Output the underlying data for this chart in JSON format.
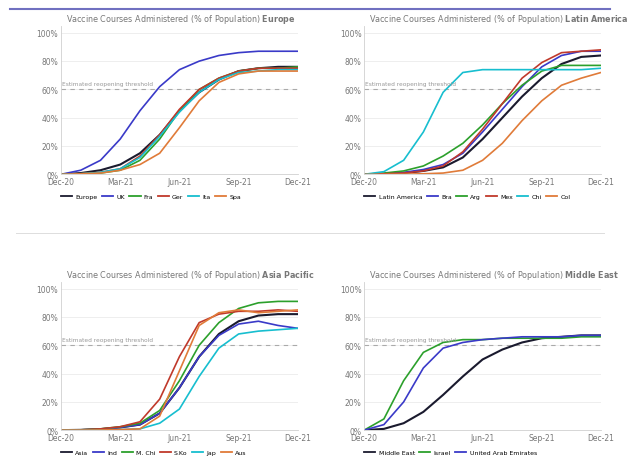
{
  "title_prefix": "Vaccine Courses Administered (% of Population) ",
  "threshold_label": "Estimated reopening threshold",
  "threshold_value": 0.6,
  "x_ticks_labels": [
    "Dec-20",
    "Mar-21",
    "Jun-21",
    "Sep-21",
    "Dec-21"
  ],
  "ylim": [
    0,
    1.05
  ],
  "yticks": [
    0,
    0.2,
    0.4,
    0.6,
    0.8,
    1.0
  ],
  "ytick_labels": [
    "0%",
    "20%",
    "40%",
    "60%",
    "80%",
    "100%"
  ],
  "panels": [
    {
      "region": "Europe",
      "series": [
        {
          "label": "Europe",
          "color": "#1a1a2e",
          "lw": 1.5,
          "x": [
            0,
            1,
            2,
            3,
            4,
            5,
            6,
            7,
            8,
            9,
            10,
            11,
            12
          ],
          "y": [
            0.001,
            0.01,
            0.03,
            0.07,
            0.15,
            0.28,
            0.45,
            0.58,
            0.67,
            0.73,
            0.75,
            0.76,
            0.76
          ]
        },
        {
          "label": "UK",
          "color": "#3a3ac8",
          "lw": 1.2,
          "x": [
            0,
            1,
            2,
            3,
            4,
            5,
            6,
            7,
            8,
            9,
            10,
            11,
            12
          ],
          "y": [
            0.001,
            0.03,
            0.1,
            0.25,
            0.45,
            0.62,
            0.74,
            0.8,
            0.84,
            0.86,
            0.87,
            0.87,
            0.87
          ]
        },
        {
          "label": "Fra",
          "color": "#2ca02c",
          "lw": 1.2,
          "x": [
            0,
            1,
            2,
            3,
            4,
            5,
            6,
            7,
            8,
            9,
            10,
            11,
            12
          ],
          "y": [
            0.001,
            0.005,
            0.01,
            0.03,
            0.1,
            0.25,
            0.45,
            0.6,
            0.68,
            0.73,
            0.75,
            0.75,
            0.76
          ]
        },
        {
          "label": "Ger",
          "color": "#c0392b",
          "lw": 1.2,
          "x": [
            0,
            1,
            2,
            3,
            4,
            5,
            6,
            7,
            8,
            9,
            10,
            11,
            12
          ],
          "y": [
            0.001,
            0.005,
            0.015,
            0.04,
            0.13,
            0.28,
            0.46,
            0.6,
            0.68,
            0.73,
            0.75,
            0.75,
            0.75
          ]
        },
        {
          "label": "Ita",
          "color": "#17becf",
          "lw": 1.2,
          "x": [
            0,
            1,
            2,
            3,
            4,
            5,
            6,
            7,
            8,
            9,
            10,
            11,
            12
          ],
          "y": [
            0.001,
            0.005,
            0.015,
            0.04,
            0.12,
            0.27,
            0.44,
            0.58,
            0.67,
            0.72,
            0.73,
            0.74,
            0.74
          ]
        },
        {
          "label": "Spa",
          "color": "#e07b39",
          "lw": 1.2,
          "x": [
            0,
            1,
            2,
            3,
            4,
            5,
            6,
            7,
            8,
            9,
            10,
            11,
            12
          ],
          "y": [
            0.001,
            0.005,
            0.01,
            0.03,
            0.07,
            0.15,
            0.33,
            0.52,
            0.65,
            0.71,
            0.73,
            0.73,
            0.73
          ]
        }
      ]
    },
    {
      "region": "Latin America",
      "series": [
        {
          "label": "Latin America",
          "color": "#1a1a2e",
          "lw": 1.5,
          "x": [
            0,
            1,
            2,
            3,
            4,
            5,
            6,
            7,
            8,
            9,
            10,
            11,
            12
          ],
          "y": [
            0.001,
            0.005,
            0.01,
            0.025,
            0.05,
            0.12,
            0.25,
            0.4,
            0.55,
            0.68,
            0.78,
            0.83,
            0.84
          ]
        },
        {
          "label": "Bra",
          "color": "#3a3ac8",
          "lw": 1.2,
          "x": [
            0,
            1,
            2,
            3,
            4,
            5,
            6,
            7,
            8,
            9,
            10,
            11,
            12
          ],
          "y": [
            0.001,
            0.005,
            0.015,
            0.035,
            0.07,
            0.15,
            0.3,
            0.46,
            0.62,
            0.76,
            0.84,
            0.87,
            0.87
          ]
        },
        {
          "label": "Arg",
          "color": "#2ca02c",
          "lw": 1.2,
          "x": [
            0,
            1,
            2,
            3,
            4,
            5,
            6,
            7,
            8,
            9,
            10,
            11,
            12
          ],
          "y": [
            0.001,
            0.01,
            0.025,
            0.06,
            0.13,
            0.22,
            0.35,
            0.5,
            0.63,
            0.73,
            0.77,
            0.77,
            0.77
          ]
        },
        {
          "label": "Mex",
          "color": "#c0392b",
          "lw": 1.2,
          "x": [
            0,
            1,
            2,
            3,
            4,
            5,
            6,
            7,
            8,
            9,
            10,
            11,
            12
          ],
          "y": [
            0.001,
            0.005,
            0.01,
            0.025,
            0.06,
            0.16,
            0.32,
            0.5,
            0.68,
            0.79,
            0.86,
            0.87,
            0.88
          ]
        },
        {
          "label": "Chi",
          "color": "#17becf",
          "lw": 1.2,
          "x": [
            0,
            1,
            2,
            3,
            4,
            5,
            6,
            7,
            8,
            9,
            10,
            11,
            12
          ],
          "y": [
            0.001,
            0.02,
            0.1,
            0.3,
            0.58,
            0.72,
            0.74,
            0.74,
            0.74,
            0.74,
            0.74,
            0.74,
            0.75
          ]
        },
        {
          "label": "Col",
          "color": "#e07b39",
          "lw": 1.2,
          "x": [
            0,
            1,
            2,
            3,
            4,
            5,
            6,
            7,
            8,
            9,
            10,
            11,
            12
          ],
          "y": [
            0.001,
            0.001,
            0.002,
            0.005,
            0.01,
            0.03,
            0.1,
            0.22,
            0.38,
            0.52,
            0.63,
            0.68,
            0.72
          ]
        }
      ]
    },
    {
      "region": "Asia Pacific",
      "series": [
        {
          "label": "Asia",
          "color": "#1a1a2e",
          "lw": 1.5,
          "x": [
            0,
            1,
            2,
            3,
            4,
            5,
            6,
            7,
            8,
            9,
            10,
            11,
            12
          ],
          "y": [
            0.001,
            0.003,
            0.008,
            0.02,
            0.04,
            0.12,
            0.3,
            0.52,
            0.68,
            0.77,
            0.81,
            0.82,
            0.82
          ]
        },
        {
          "label": "Ind",
          "color": "#3a3ac8",
          "lw": 1.2,
          "x": [
            0,
            1,
            2,
            3,
            4,
            5,
            6,
            7,
            8,
            9,
            10,
            11,
            12
          ],
          "y": [
            0.001,
            0.003,
            0.008,
            0.02,
            0.04,
            0.12,
            0.3,
            0.52,
            0.67,
            0.75,
            0.77,
            0.74,
            0.72
          ]
        },
        {
          "label": "M. Chi",
          "color": "#2ca02c",
          "lw": 1.2,
          "x": [
            0,
            1,
            2,
            3,
            4,
            5,
            6,
            7,
            8,
            9,
            10,
            11,
            12
          ],
          "y": [
            0.001,
            0.003,
            0.01,
            0.025,
            0.05,
            0.14,
            0.35,
            0.6,
            0.76,
            0.86,
            0.9,
            0.91,
            0.91
          ]
        },
        {
          "label": "S.Ko",
          "color": "#c0392b",
          "lw": 1.2,
          "x": [
            0,
            1,
            2,
            3,
            4,
            5,
            6,
            7,
            8,
            9,
            10,
            11,
            12
          ],
          "y": [
            0.001,
            0.003,
            0.01,
            0.025,
            0.06,
            0.22,
            0.52,
            0.76,
            0.82,
            0.84,
            0.84,
            0.85,
            0.84
          ]
        },
        {
          "label": "Jap",
          "color": "#17becf",
          "lw": 1.2,
          "x": [
            0,
            1,
            2,
            3,
            4,
            5,
            6,
            7,
            8,
            9,
            10,
            11,
            12
          ],
          "y": [
            0.001,
            0.001,
            0.003,
            0.005,
            0.01,
            0.05,
            0.15,
            0.38,
            0.58,
            0.68,
            0.7,
            0.71,
            0.72
          ]
        },
        {
          "label": "Aus",
          "color": "#e07b39",
          "lw": 1.2,
          "x": [
            0,
            1,
            2,
            3,
            4,
            5,
            6,
            7,
            8,
            9,
            10,
            11,
            12
          ],
          "y": [
            0.001,
            0.001,
            0.002,
            0.005,
            0.01,
            0.1,
            0.42,
            0.74,
            0.83,
            0.85,
            0.83,
            0.84,
            0.85
          ]
        }
      ]
    },
    {
      "region": "Middle East",
      "series": [
        {
          "label": "Middle East",
          "color": "#1a1a2e",
          "lw": 1.5,
          "x": [
            0,
            1,
            2,
            3,
            4,
            5,
            6,
            7,
            8,
            9,
            10,
            11,
            12
          ],
          "y": [
            0.001,
            0.01,
            0.05,
            0.13,
            0.25,
            0.38,
            0.5,
            0.57,
            0.62,
            0.65,
            0.66,
            0.67,
            0.67
          ]
        },
        {
          "label": "Israel",
          "color": "#2ca02c",
          "lw": 1.2,
          "x": [
            0,
            1,
            2,
            3,
            4,
            5,
            6,
            7,
            8,
            9,
            10,
            11,
            12
          ],
          "y": [
            0.001,
            0.08,
            0.35,
            0.55,
            0.62,
            0.64,
            0.64,
            0.65,
            0.65,
            0.65,
            0.65,
            0.66,
            0.66
          ]
        },
        {
          "label": "United Arab Emirates",
          "color": "#3a3ac8",
          "lw": 1.2,
          "x": [
            0,
            1,
            2,
            3,
            4,
            5,
            6,
            7,
            8,
            9,
            10,
            11,
            12
          ],
          "y": [
            0.001,
            0.04,
            0.2,
            0.44,
            0.58,
            0.62,
            0.64,
            0.65,
            0.66,
            0.66,
            0.66,
            0.67,
            0.67
          ]
        }
      ]
    }
  ],
  "bg_color": "#ffffff",
  "panel_bg": "#ffffff",
  "grid_color": "#e8e8e8",
  "threshold_color": "#aaaaaa",
  "threshold_text_color": "#999999",
  "axis_label_color": "#777777",
  "title_normal_color": "#777777",
  "divider_color": "#dddddd",
  "top_line_color": "#7070c0"
}
